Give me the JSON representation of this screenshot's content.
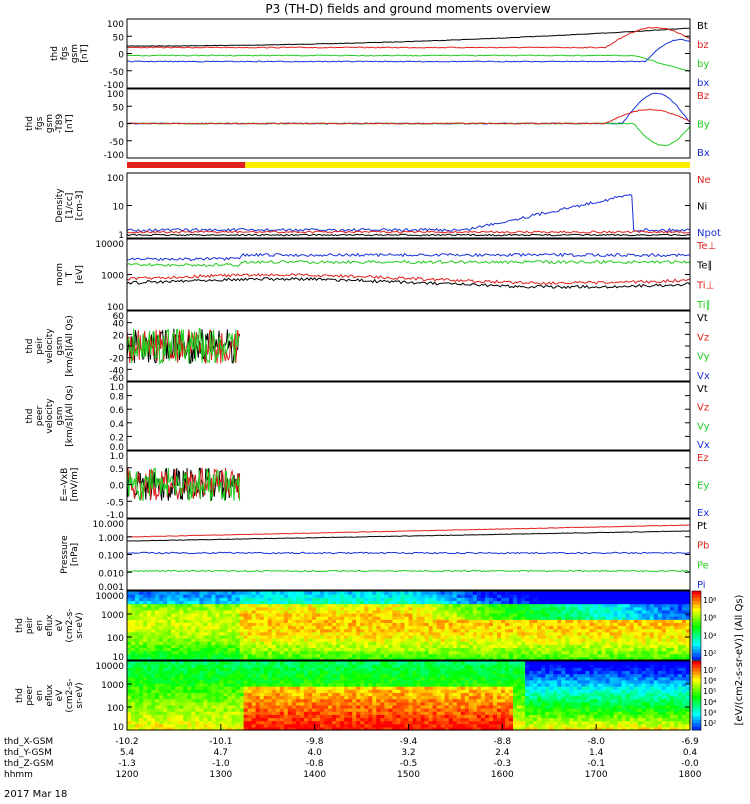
{
  "title": "P3 (TH-D) fields and ground moments overview",
  "date_label": "2017 Mar 18",
  "colors": {
    "black": "#000000",
    "red": "#e0201b",
    "green": "#22cc22",
    "blue": "#1830d8",
    "yellow": "#ffee00"
  },
  "chart_data": [
    {
      "type": "line",
      "id": "fgs_gsm",
      "ylabel_lines": [
        "thd",
        "fgs",
        "gsm",
        "[nT]"
      ],
      "yticks": [
        "100",
        "50",
        "0",
        "-50",
        "-100"
      ],
      "ylim": [
        -100,
        100
      ],
      "legend": [
        {
          "name": "Bt",
          "color": "black"
        },
        {
          "name": "bz",
          "color": "red"
        },
        {
          "name": "by",
          "color": "green"
        },
        {
          "name": "bx",
          "color": "blue"
        }
      ]
    },
    {
      "type": "line",
      "id": "fgs_gsm_model",
      "ylabel_lines": [
        "thd",
        "fgs",
        "gsm",
        "-T89",
        "[nT]"
      ],
      "yticks": [
        "100",
        "50",
        "0",
        "-50",
        "-100"
      ],
      "ylim": [
        -120,
        120
      ],
      "legend": [
        {
          "name": "Bz",
          "color": "red"
        },
        {
          "name": "By",
          "color": "green"
        },
        {
          "name": "Bx",
          "color": "blue"
        }
      ]
    },
    {
      "type": "line",
      "id": "density",
      "ylabel_lines": [
        "Density",
        "[1/cc]",
        "[cm-3]"
      ],
      "yticks": [
        "100",
        "10",
        "1"
      ],
      "log": true,
      "legend": [
        {
          "name": "Ne",
          "color": "red"
        },
        {
          "name": "Ni",
          "color": "black"
        },
        {
          "name": "Npot",
          "color": "blue"
        }
      ]
    },
    {
      "type": "line",
      "id": "temperature",
      "ylabel_lines": [
        "mom",
        "T",
        "[eV]"
      ],
      "yticks": [
        "10000",
        "1000",
        "100"
      ],
      "log": true,
      "legend": [
        {
          "name": "Te⊥",
          "color": "red"
        },
        {
          "name": "Te∥",
          "color": "black"
        },
        {
          "name": "Ti⊥",
          "color": "red"
        },
        {
          "name": "Ti∥",
          "color": "green"
        }
      ]
    },
    {
      "type": "line",
      "id": "peir_velocity",
      "ylabel_lines": [
        "thd",
        "peir",
        "velocity",
        "gsm",
        "[km/s](All Qs)"
      ],
      "yticks": [
        "60",
        "40",
        "20",
        "0",
        "-20",
        "-40",
        "-60"
      ],
      "ylim": [
        -60,
        60
      ],
      "legend": [
        {
          "name": "Vt",
          "color": "black"
        },
        {
          "name": "Vz",
          "color": "red"
        },
        {
          "name": "Vy",
          "color": "green"
        },
        {
          "name": "Vx",
          "color": "blue"
        }
      ]
    },
    {
      "type": "line",
      "id": "peer_velocity",
      "ylabel_lines": [
        "thd",
        "peer",
        "velocity",
        "gsm",
        "[km/s](All Qs)"
      ],
      "yticks": [
        "1.0",
        "0.8",
        "0.6",
        "0.4",
        "0.2",
        "0.0"
      ],
      "ylim": [
        0,
        1
      ],
      "legend": [
        {
          "name": "Vt",
          "color": "black"
        },
        {
          "name": "Vz",
          "color": "red"
        },
        {
          "name": "Vy",
          "color": "green"
        },
        {
          "name": "Vx",
          "color": "blue"
        }
      ]
    },
    {
      "type": "line",
      "id": "efield",
      "ylabel_lines": [
        "E=-VxB",
        "[mV/m]"
      ],
      "yticks": [
        "1.0",
        "0.5",
        "0.0",
        "-0.5",
        "-1.0"
      ],
      "ylim": [
        -1,
        1
      ],
      "legend": [
        {
          "name": "Ez",
          "color": "red"
        },
        {
          "name": "Ey",
          "color": "green"
        },
        {
          "name": "Ex",
          "color": "blue"
        }
      ]
    },
    {
      "type": "line",
      "id": "pressure",
      "ylabel_lines": [
        "Pressure",
        "[nPa]"
      ],
      "yticks": [
        "10.000",
        "1.000",
        "0.100",
        "0.010",
        "0.001"
      ],
      "log": true,
      "legend": [
        {
          "name": "Pt",
          "color": "black"
        },
        {
          "name": "Pb",
          "color": "red"
        },
        {
          "name": "Pe",
          "color": "green"
        },
        {
          "name": "Pi",
          "color": "blue"
        }
      ]
    },
    {
      "type": "heatmap",
      "id": "peir_spec",
      "ylabel_lines": [
        "thd",
        "peir",
        "en",
        "eflux",
        "eV",
        "(cm2-s-",
        "sr-eV)"
      ],
      "yticks": [
        "10000",
        "1000",
        "100",
        "10"
      ],
      "log": true,
      "colorbar_ticks": [
        "10⁸",
        "10⁶",
        "10⁴",
        "10²"
      ]
    },
    {
      "type": "heatmap",
      "id": "peer_spec",
      "ylabel_lines": [
        "thd",
        "peer",
        "en",
        "eflux",
        "eV",
        "(cm2-s-",
        "sr-eV)"
      ],
      "yticks": [
        "10000",
        "1000",
        "100",
        "10"
      ],
      "log": true,
      "colorbar_ticks": [
        "10⁷",
        "10⁶",
        "10⁵",
        "10⁴",
        "10³",
        "10²"
      ]
    }
  ],
  "colorbar_label": "[eV/(cm2-s-sr-eV)] (All Qs)",
  "x_axis": {
    "rows": [
      {
        "label": "thd_X-GSM",
        "values": [
          "-10.2",
          "-10.1",
          "-9.8",
          "-9.4",
          "-8.8",
          "-8.0",
          "-6.9"
        ]
      },
      {
        "label": "thd_Y-GSM",
        "values": [
          "5.4",
          "4.7",
          "4.0",
          "3.2",
          "2.4",
          "1.4",
          "0.4"
        ]
      },
      {
        "label": "thd_Z-GSM",
        "values": [
          "-1.3",
          "-1.0",
          "-0.8",
          "-0.5",
          "-0.3",
          "-0.1",
          "-0.0"
        ]
      },
      {
        "label": "hhmm",
        "values": [
          "1200",
          "1300",
          "1400",
          "1500",
          "1600",
          "1700",
          "1800"
        ]
      }
    ]
  }
}
